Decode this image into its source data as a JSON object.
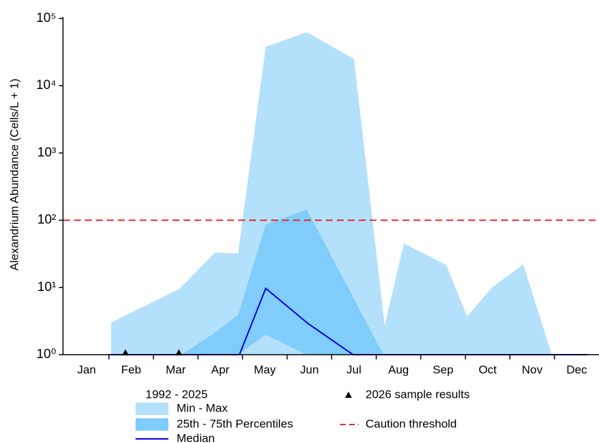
{
  "chart_data": {
    "type": "area",
    "ylabel": "Alexandrium Abundance (Cells/L + 1)",
    "yscale": "log",
    "ylim": [
      1,
      100000
    ],
    "yticks": [
      {
        "value": 1,
        "label": "10⁰"
      },
      {
        "value": 10,
        "label": "10¹"
      },
      {
        "value": 100,
        "label": "10²"
      },
      {
        "value": 1000,
        "label": "10³"
      },
      {
        "value": 10000,
        "label": "10⁴"
      },
      {
        "value": 100000,
        "label": "10⁵"
      }
    ],
    "xlim": [
      0.5,
      12.5
    ],
    "categories": [
      "Jan",
      "Feb",
      "Mar",
      "Apr",
      "May",
      "Jun",
      "Jul",
      "Aug",
      "Sep",
      "Oct",
      "Nov",
      "Dec"
    ],
    "legend_title": "1992 - 2025",
    "series": [
      {
        "name": "Min - Max",
        "kind": "band",
        "color": "#b3e0fb",
        "x": [
          1.55,
          3.08,
          3.88,
          4.4,
          5.02,
          5.94,
          7.0,
          7.69,
          8.12,
          9.07,
          9.54,
          10.1,
          10.8,
          11.44,
          12.24
        ],
        "values": [
          3,
          9.5,
          33,
          32,
          38000,
          62500,
          25000,
          2.7,
          45,
          21.6,
          3.7,
          10,
          22,
          1,
          1
        ],
        "lower": [
          1,
          1,
          1,
          1,
          1,
          1,
          1,
          1,
          1,
          1,
          1,
          1,
          1,
          1,
          1
        ]
      },
      {
        "name": "25th - 75th Percentiles",
        "kind": "band",
        "color": "#80ccfa",
        "x": [
          3.13,
          3.82,
          4.4,
          5.02,
          5.94,
          7.66
        ],
        "values": [
          1,
          2,
          3.9,
          86,
          144,
          1
        ],
        "lower": [
          1,
          1,
          1,
          2,
          1,
          1
        ]
      },
      {
        "name": "Median",
        "kind": "line",
        "color": "#0000dd",
        "x": [
          1.51,
          4.43,
          5.02,
          5.97,
          6.98,
          12.24
        ],
        "values": [
          1,
          1,
          9.7,
          2.9,
          1,
          1
        ]
      }
    ],
    "samples": {
      "name": "2026 sample results",
      "color": "#000000",
      "x": [
        1.87,
        3.07
      ],
      "values": [
        1.07,
        1.07
      ]
    },
    "threshold": {
      "name": "Caution threshold",
      "value": 100,
      "color": "#e8262a"
    }
  }
}
